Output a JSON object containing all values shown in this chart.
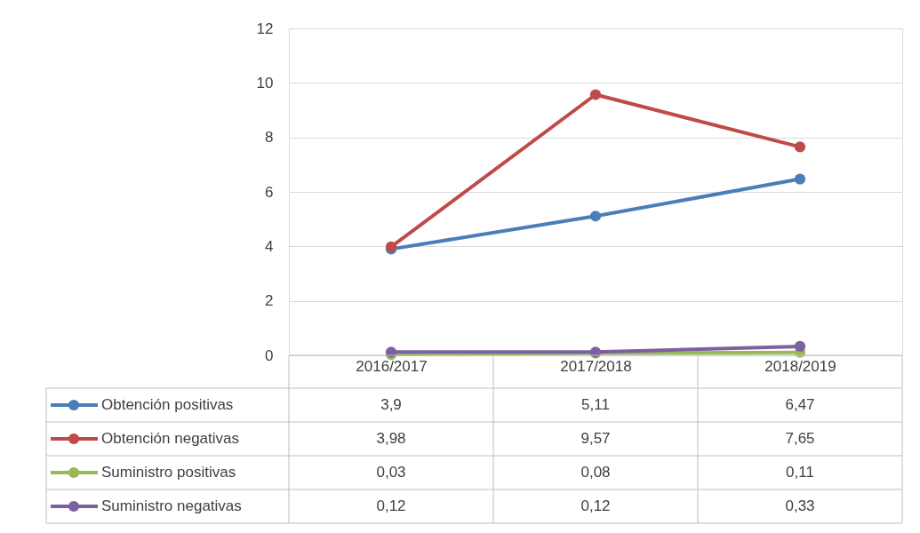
{
  "chart_data": {
    "type": "line",
    "categories": [
      "2016/2017",
      "2017/2018",
      "2018/2019"
    ],
    "series": [
      {
        "name": "Obtención positivas",
        "color": "#4a7ebb",
        "values": [
          3.9,
          5.11,
          6.47
        ],
        "value_labels": [
          "3,9",
          "5,11",
          "6,47"
        ]
      },
      {
        "name": "Obtención negativas",
        "color": "#be4b48",
        "values": [
          3.98,
          9.57,
          7.65
        ],
        "value_labels": [
          "3,98",
          "9,57",
          "7,65"
        ]
      },
      {
        "name": "Suministro positivas",
        "color": "#98b954",
        "values": [
          0.03,
          0.08,
          0.11
        ],
        "value_labels": [
          "0,03",
          "0,08",
          "0,11"
        ]
      },
      {
        "name": "Suministro negativas",
        "color": "#7d60a0",
        "values": [
          0.12,
          0.12,
          0.33
        ],
        "value_labels": [
          "0,12",
          "0,12",
          "0,33"
        ]
      }
    ],
    "ylim": [
      0,
      12
    ],
    "yticks": [
      0,
      2,
      4,
      6,
      8,
      10,
      12
    ],
    "grid": "y",
    "legend": "bottom",
    "marker": "circle",
    "line_style": "solid"
  }
}
